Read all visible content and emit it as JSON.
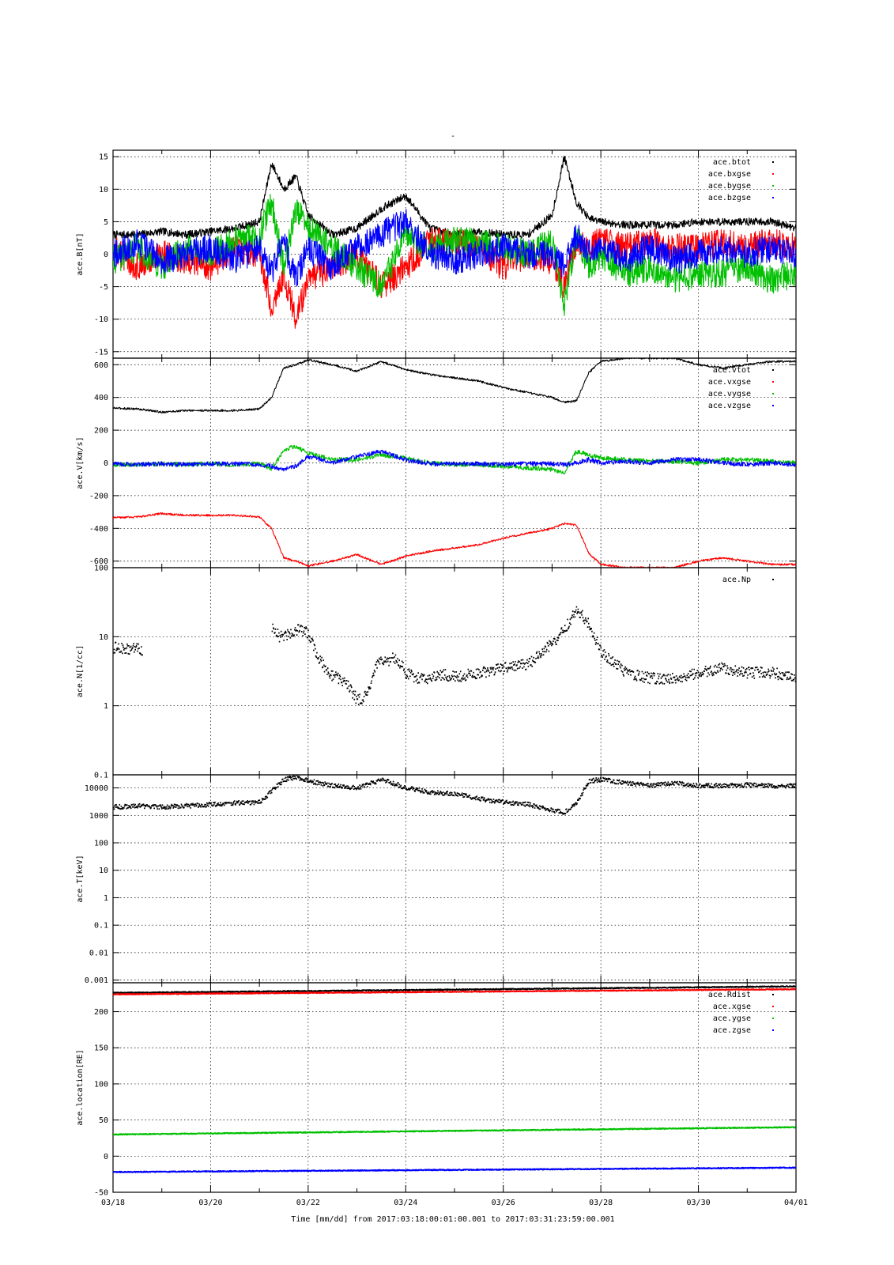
{
  "figure": {
    "top_mark": "-",
    "x_ticks": [
      "03/18",
      "03/20",
      "03/22",
      "03/24",
      "03/26",
      "03/28",
      "03/30",
      "04/01"
    ],
    "x_caption": "Time [mm/dd]  from 2017:03:18:00:01:00.001  to  2017:03:31:23:59:00.001"
  },
  "chart_data": [
    {
      "type": "line",
      "ylabel": "ace.B[nT]",
      "ylim": [
        -16,
        16
      ],
      "yticks": [
        15,
        10,
        5,
        0,
        -5,
        -10,
        -15
      ],
      "ytick_labels": [
        "15",
        "10",
        "5",
        "0",
        "-5",
        "-10",
        "-15"
      ],
      "grid": true,
      "legend_position": "top-right",
      "x": [
        0,
        0.5,
        1,
        1.5,
        2,
        2.5,
        3,
        3.25,
        3.5,
        3.75,
        4,
        4.5,
        5,
        5.5,
        6,
        6.5,
        7,
        7.5,
        8,
        8.5,
        9,
        9.25,
        9.5,
        9.75,
        10,
        10.5,
        11,
        11.5,
        12,
        12.5,
        13,
        13.5,
        14
      ],
      "series": [
        {
          "name": "ace.btot",
          "color": "#000000",
          "values": [
            3,
            3,
            3.5,
            3,
            3.5,
            4,
            5,
            14,
            10,
            12,
            6,
            3,
            4,
            7,
            9,
            4,
            3,
            3.5,
            3,
            3,
            6,
            15,
            8,
            5.5,
            5,
            4.5,
            4.5,
            4.5,
            5,
            5,
            5,
            5,
            4
          ]
        },
        {
          "name": "ace.bxgse",
          "color": "#ff0000",
          "values": [
            1,
            -2,
            0,
            -1,
            -2,
            1,
            0,
            -8,
            -3,
            -10,
            -4,
            -2,
            0,
            -5,
            -2,
            2,
            2,
            1,
            -2,
            0,
            -1,
            -5,
            2,
            1,
            2,
            1,
            2,
            1,
            1,
            2,
            1,
            2,
            1
          ]
        },
        {
          "name": "ace.bygse",
          "color": "#00c000",
          "values": [
            -1,
            1,
            -2,
            1,
            0,
            2,
            3,
            8,
            -2,
            7,
            4,
            1,
            -2,
            -5,
            3,
            1,
            2,
            2,
            1,
            0,
            2,
            -8,
            3,
            -2,
            0,
            -3,
            -2,
            -4,
            -3,
            -3,
            -2,
            -4,
            -3
          ]
        },
        {
          "name": "ace.bzgse",
          "color": "#0000ff",
          "values": [
            0,
            2,
            -1,
            0,
            1,
            -1,
            1,
            -3,
            2,
            -4,
            1,
            -2,
            1,
            3,
            5,
            0,
            -1,
            0,
            1,
            0,
            0,
            -2,
            3,
            0,
            1,
            -1,
            1,
            -1,
            0,
            1,
            0,
            1,
            0
          ]
        }
      ]
    },
    {
      "type": "line",
      "ylabel": "ace.V[km/s]",
      "ylim": [
        -640,
        640
      ],
      "yticks": [
        600,
        400,
        200,
        0,
        -200,
        -400,
        -600
      ],
      "ytick_labels": [
        "600",
        "400",
        "200",
        "0",
        "-200",
        "-400",
        "-600"
      ],
      "grid": true,
      "legend_position": "top-right",
      "x": [
        0,
        0.5,
        1,
        1.5,
        2,
        2.5,
        3,
        3.25,
        3.5,
        3.75,
        4,
        4.5,
        5,
        5.5,
        6,
        6.5,
        7,
        7.5,
        8,
        8.5,
        9,
        9.25,
        9.5,
        9.75,
        10,
        10.5,
        11,
        11.5,
        12,
        12.5,
        13,
        13.5,
        14
      ],
      "series": [
        {
          "name": "ace.vtot",
          "color": "#000000",
          "values": [
            335,
            330,
            310,
            320,
            320,
            320,
            330,
            400,
            580,
            600,
            630,
            600,
            560,
            620,
            570,
            540,
            520,
            500,
            460,
            430,
            400,
            370,
            380,
            550,
            620,
            640,
            640,
            640,
            600,
            580,
            600,
            620,
            620
          ]
        },
        {
          "name": "ace.vxgse",
          "color": "#ff0000",
          "values": [
            -335,
            -330,
            -310,
            -320,
            -320,
            -320,
            -330,
            -400,
            -580,
            -600,
            -630,
            -600,
            -560,
            -620,
            -570,
            -540,
            -520,
            -500,
            -460,
            -430,
            -400,
            -370,
            -380,
            -550,
            -620,
            -640,
            -640,
            -640,
            -600,
            -580,
            -600,
            -620,
            -620
          ]
        },
        {
          "name": "ace.vygse",
          "color": "#00c000",
          "values": [
            -10,
            -10,
            -5,
            -10,
            -5,
            -10,
            -5,
            -40,
            80,
            100,
            60,
            20,
            20,
            50,
            30,
            0,
            -10,
            -10,
            -20,
            -30,
            -40,
            -60,
            70,
            50,
            30,
            20,
            10,
            10,
            0,
            20,
            20,
            10,
            0
          ]
        },
        {
          "name": "ace.vzgse",
          "color": "#0000ff",
          "values": [
            -5,
            -10,
            -5,
            -10,
            -5,
            -5,
            -10,
            -20,
            -40,
            -20,
            40,
            0,
            40,
            70,
            20,
            -5,
            -5,
            -5,
            -10,
            -5,
            -5,
            -10,
            0,
            20,
            0,
            10,
            0,
            20,
            20,
            0,
            -10,
            0,
            -10
          ]
        }
      ]
    },
    {
      "type": "scatter",
      "ylabel": "ace.N[1/cc]",
      "yscale": "log",
      "ylim": [
        0.1,
        100
      ],
      "yticks": [
        100,
        10,
        1,
        0.1
      ],
      "ytick_labels": [
        "100",
        "10",
        "1",
        "0.1"
      ],
      "grid": true,
      "legend_position": "top-right",
      "x": [
        0,
        0.3,
        0.5,
        0.6,
        3.25,
        3.4,
        3.6,
        3.8,
        4,
        4.2,
        4.4,
        4.6,
        4.8,
        5,
        5.2,
        5.4,
        5.6,
        5.8,
        6,
        6.2,
        6.4,
        6.6,
        6.8,
        7,
        7.5,
        8,
        8.5,
        9,
        9.25,
        9.5,
        9.75,
        10,
        10.5,
        11,
        11.5,
        12,
        12.5,
        13,
        13.5,
        14
      ],
      "series": [
        {
          "name": "ace.Np",
          "color": "#000000",
          "values": [
            7,
            6.5,
            7,
            6,
            14,
            10,
            11,
            13,
            11,
            5,
            3,
            2.5,
            2,
            1.2,
            1.4,
            4,
            4.5,
            5,
            3,
            2.5,
            2.5,
            2.7,
            2.8,
            2.6,
            3,
            3.5,
            4,
            8,
            13,
            25,
            15,
            6,
            3,
            2.5,
            2.5,
            3,
            3.5,
            3,
            3,
            2.5
          ]
        }
      ]
    },
    {
      "type": "scatter",
      "ylabel": "ace.T[keV]",
      "yscale": "log",
      "ylim": [
        0.0008,
        30000
      ],
      "yticks": [
        10000,
        1000,
        100,
        10,
        1,
        0.1,
        0.01,
        0.001
      ],
      "ytick_labels": [
        "10000",
        "1000",
        "100",
        "10",
        "1",
        "0.1",
        "0.01",
        "0.001"
      ],
      "grid": true,
      "x": [
        0,
        0.5,
        1,
        1.5,
        2,
        2.5,
        3,
        3.25,
        3.5,
        3.75,
        4,
        4.5,
        5,
        5.5,
        6,
        6.5,
        7,
        7.5,
        8,
        8.5,
        9,
        9.25,
        9.5,
        9.75,
        10,
        10.5,
        11,
        11.5,
        12,
        12.5,
        13,
        13.5,
        14
      ],
      "series": [
        {
          "name": "ace.T",
          "color": "#000000",
          "values": [
            2000,
            2200,
            2000,
            2200,
            2500,
            2800,
            3000,
            8000,
            20000,
            25000,
            18000,
            12000,
            10000,
            20000,
            10000,
            7000,
            6000,
            4000,
            3000,
            2500,
            1500,
            1300,
            3000,
            18000,
            20000,
            15000,
            12000,
            15000,
            12000,
            12000,
            13000,
            12000,
            12000
          ]
        }
      ]
    },
    {
      "type": "line",
      "ylabel": "ace.location[RE]",
      "ylim": [
        -50,
        240
      ],
      "yticks": [
        200,
        150,
        100,
        50,
        0,
        -50
      ],
      "ytick_labels": [
        "200",
        "150",
        "100",
        "50",
        "0",
        "-50"
      ],
      "grid": true,
      "legend_position": "top-right",
      "x": [
        0,
        14
      ],
      "series": [
        {
          "name": "ace.Rdist",
          "color": "#000000",
          "values": [
            226,
            235
          ]
        },
        {
          "name": "ace.xgse",
          "color": "#ff0000",
          "values": [
            224,
            231
          ]
        },
        {
          "name": "ace.ygse",
          "color": "#00c000",
          "values": [
            30,
            40
          ]
        },
        {
          "name": "ace.zgse",
          "color": "#0000ff",
          "values": [
            -22,
            -16
          ]
        }
      ]
    }
  ]
}
